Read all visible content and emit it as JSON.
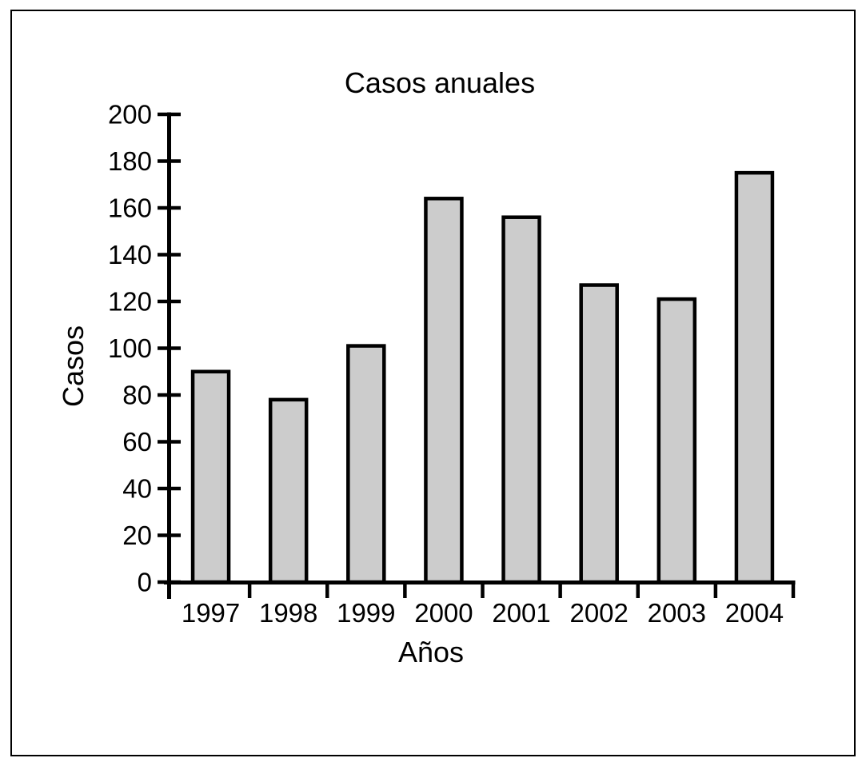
{
  "figure": {
    "background": "#ffffff",
    "frame_color": "#000000",
    "axis_color": "#000000",
    "text_color": "#000000",
    "bar_fill": "#cccccc",
    "bar_border": "#000000"
  },
  "chart_data": {
    "type": "bar",
    "title": "Casos anuales",
    "xlabel": "Años",
    "ylabel": "Casos",
    "categories": [
      "1997",
      "1998",
      "1999",
      "2000",
      "2001",
      "2002",
      "2003",
      "2004"
    ],
    "values": [
      90,
      78,
      101,
      164,
      156,
      127,
      121,
      175
    ],
    "yticks": [
      0,
      20,
      40,
      60,
      80,
      100,
      120,
      140,
      160,
      180,
      200
    ],
    "ylim": [
      0,
      200
    ],
    "grid": false,
    "legend": false,
    "bar_color": "#cccccc"
  }
}
